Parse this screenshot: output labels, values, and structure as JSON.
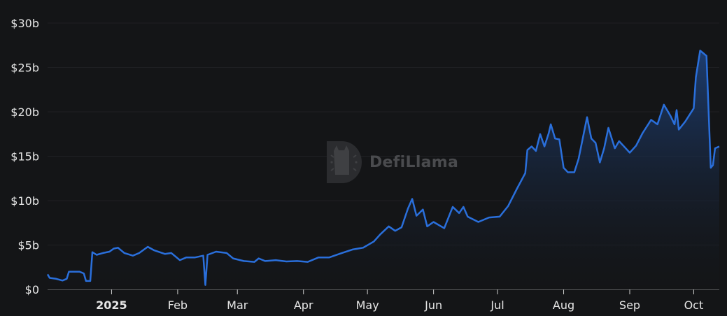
{
  "watermark": {
    "text": "DefiLlama"
  },
  "colors": {
    "background": "#141517",
    "line": "#2a6fdb",
    "fill_top": "#1d3f75",
    "grid": "#1f2023",
    "axis": "#5a5b5e"
  },
  "chart_data": {
    "type": "area",
    "title": "",
    "xlabel": "",
    "ylabel": "",
    "ylim": [
      0,
      30
    ],
    "yticks": [
      0,
      5,
      10,
      15,
      20,
      25,
      30
    ],
    "ytick_labels": [
      "$0",
      "$5b",
      "$10b",
      "$15b",
      "$20b",
      "$25b",
      "$30b"
    ],
    "xticks": [
      "2025-01-01",
      "2025-02-01",
      "2025-03-01",
      "2025-04-01",
      "2025-05-01",
      "2025-06-01",
      "2025-07-01",
      "2025-08-01",
      "2025-09-01",
      "2025-10-01"
    ],
    "xtick_labels": [
      "2025",
      "Feb",
      "Mar",
      "Apr",
      "May",
      "Jun",
      "Jul",
      "Aug",
      "Sep",
      "Oct"
    ],
    "xlim": [
      "2024-12-02",
      "2025-10-13"
    ],
    "grid": true,
    "series": [
      {
        "unit": "USD billions",
        "points": [
          [
            "2024-12-02",
            1.7
          ],
          [
            "2024-12-03",
            1.3
          ],
          [
            "2024-12-06",
            1.2
          ],
          [
            "2024-12-09",
            1.0
          ],
          [
            "2024-12-11",
            1.2
          ],
          [
            "2024-12-12",
            2.0
          ],
          [
            "2024-12-17",
            2.0
          ],
          [
            "2024-12-19",
            1.8
          ],
          [
            "2024-12-20",
            0.95
          ],
          [
            "2024-12-22",
            0.95
          ],
          [
            "2024-12-23",
            4.2
          ],
          [
            "2024-12-25",
            3.9
          ],
          [
            "2024-12-28",
            4.1
          ],
          [
            "2024-12-31",
            4.25
          ],
          [
            "2025-01-02",
            4.6
          ],
          [
            "2025-01-04",
            4.7
          ],
          [
            "2025-01-07",
            4.1
          ],
          [
            "2025-01-11",
            3.8
          ],
          [
            "2025-01-14",
            4.1
          ],
          [
            "2025-01-18",
            4.8
          ],
          [
            "2025-01-21",
            4.4
          ],
          [
            "2025-01-26",
            4.0
          ],
          [
            "2025-01-29",
            4.1
          ],
          [
            "2025-02-02",
            3.3
          ],
          [
            "2025-02-05",
            3.6
          ],
          [
            "2025-02-09",
            3.6
          ],
          [
            "2025-02-13",
            3.8
          ],
          [
            "2025-02-14",
            0.5
          ],
          [
            "2025-02-15",
            3.9
          ],
          [
            "2025-02-19",
            4.25
          ],
          [
            "2025-02-24",
            4.1
          ],
          [
            "2025-02-27",
            3.5
          ],
          [
            "2025-03-04",
            3.2
          ],
          [
            "2025-03-09",
            3.1
          ],
          [
            "2025-03-11",
            3.5
          ],
          [
            "2025-03-14",
            3.2
          ],
          [
            "2025-03-19",
            3.3
          ],
          [
            "2025-03-24",
            3.15
          ],
          [
            "2025-03-29",
            3.2
          ],
          [
            "2025-04-03",
            3.1
          ],
          [
            "2025-04-08",
            3.6
          ],
          [
            "2025-04-13",
            3.6
          ],
          [
            "2025-04-19",
            4.1
          ],
          [
            "2025-04-24",
            4.5
          ],
          [
            "2025-04-29",
            4.7
          ],
          [
            "2025-05-04",
            5.4
          ],
          [
            "2025-05-07",
            6.2
          ],
          [
            "2025-05-11",
            7.1
          ],
          [
            "2025-05-14",
            6.6
          ],
          [
            "2025-05-17",
            7.0
          ],
          [
            "2025-05-20",
            9.1
          ],
          [
            "2025-05-22",
            10.2
          ],
          [
            "2025-05-24",
            8.3
          ],
          [
            "2025-05-27",
            9.0
          ],
          [
            "2025-05-29",
            7.1
          ],
          [
            "2025-06-01",
            7.6
          ],
          [
            "2025-06-06",
            6.9
          ],
          [
            "2025-06-10",
            9.3
          ],
          [
            "2025-06-13",
            8.6
          ],
          [
            "2025-06-15",
            9.3
          ],
          [
            "2025-06-17",
            8.2
          ],
          [
            "2025-06-22",
            7.6
          ],
          [
            "2025-06-27",
            8.1
          ],
          [
            "2025-07-02",
            8.2
          ],
          [
            "2025-07-06",
            9.4
          ],
          [
            "2025-07-10",
            11.3
          ],
          [
            "2025-07-14",
            13.1
          ],
          [
            "2025-07-15",
            15.7
          ],
          [
            "2025-07-17",
            16.1
          ],
          [
            "2025-07-19",
            15.6
          ],
          [
            "2025-07-21",
            17.5
          ],
          [
            "2025-07-23",
            16.1
          ],
          [
            "2025-07-25",
            17.6
          ],
          [
            "2025-07-26",
            18.6
          ],
          [
            "2025-07-28",
            17.0
          ],
          [
            "2025-07-30",
            16.9
          ],
          [
            "2025-08-01",
            13.7
          ],
          [
            "2025-08-03",
            13.2
          ],
          [
            "2025-08-06",
            13.2
          ],
          [
            "2025-08-08",
            14.7
          ],
          [
            "2025-08-12",
            19.4
          ],
          [
            "2025-08-14",
            17.0
          ],
          [
            "2025-08-16",
            16.5
          ],
          [
            "2025-08-18",
            14.3
          ],
          [
            "2025-08-20",
            15.9
          ],
          [
            "2025-08-22",
            18.2
          ],
          [
            "2025-08-25",
            15.9
          ],
          [
            "2025-08-27",
            16.7
          ],
          [
            "2025-09-01",
            15.4
          ],
          [
            "2025-09-04",
            16.2
          ],
          [
            "2025-09-07",
            17.6
          ],
          [
            "2025-09-11",
            19.1
          ],
          [
            "2025-09-14",
            18.6
          ],
          [
            "2025-09-17",
            20.8
          ],
          [
            "2025-09-20",
            19.6
          ],
          [
            "2025-09-22",
            18.6
          ],
          [
            "2025-09-23",
            20.2
          ],
          [
            "2025-09-24",
            18.0
          ],
          [
            "2025-09-27",
            18.9
          ],
          [
            "2025-10-01",
            20.4
          ],
          [
            "2025-10-02",
            23.9
          ],
          [
            "2025-10-04",
            26.9
          ],
          [
            "2025-10-06",
            26.5
          ],
          [
            "2025-10-07",
            26.3
          ],
          [
            "2025-10-09",
            13.7
          ],
          [
            "2025-10-10",
            14.0
          ],
          [
            "2025-10-11",
            15.9
          ],
          [
            "2025-10-13",
            16.1
          ]
        ]
      }
    ]
  }
}
